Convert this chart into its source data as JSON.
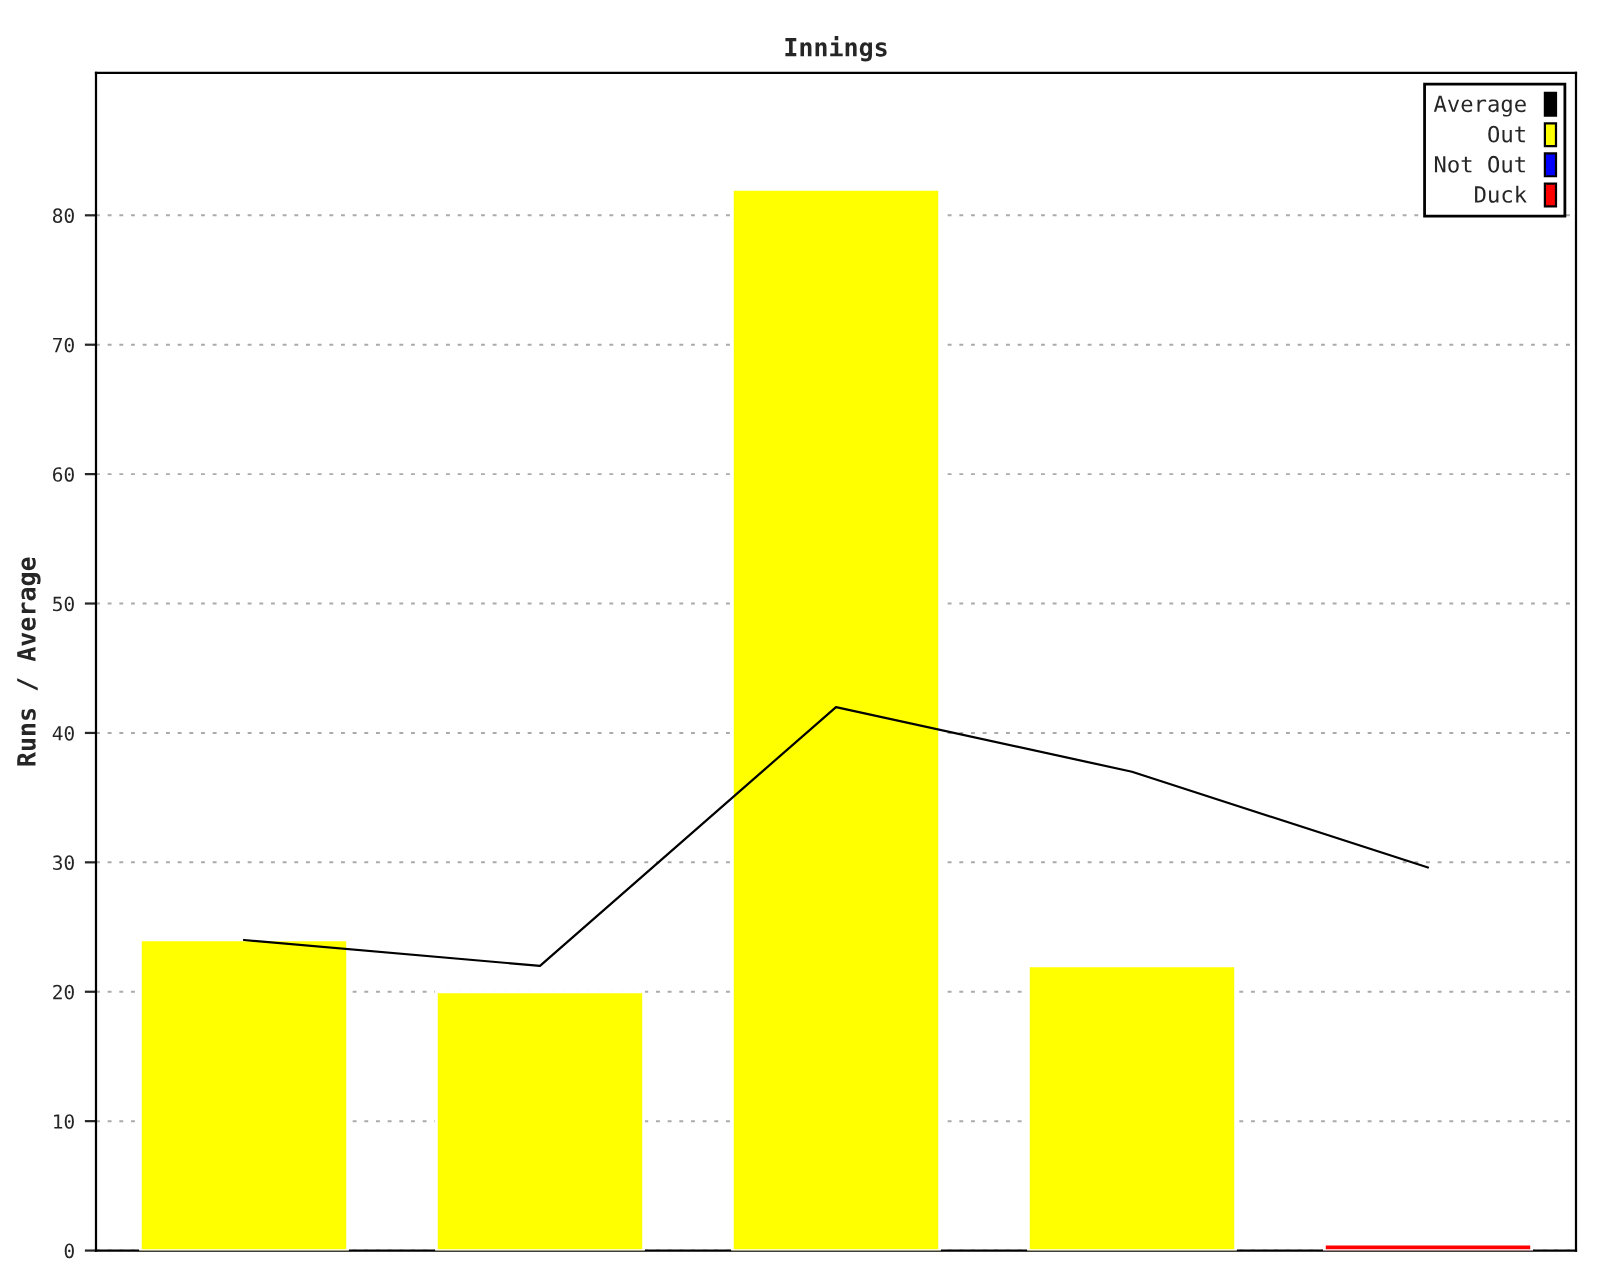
{
  "chart_data": {
    "type": "bar",
    "title": "Innings",
    "ylabel": "Runs / Average",
    "categories": [
      null,
      null,
      null,
      null,
      null
    ],
    "series": [
      {
        "name": "Average",
        "type": "line",
        "color": "#000000",
        "values": [
          24,
          22,
          42,
          37,
          29.6
        ]
      },
      {
        "name": "Out",
        "color": "#ffff00",
        "values": [
          24,
          20,
          82,
          22,
          null
        ]
      },
      {
        "name": "Not Out",
        "color": "#0000ff",
        "values": [
          null,
          null,
          null,
          null,
          null
        ]
      },
      {
        "name": "Duck",
        "color": "#ff0000",
        "values": [
          null,
          null,
          null,
          null,
          0.5
        ]
      }
    ],
    "ylim": [
      0,
      91
    ],
    "yticks": [
      0,
      10,
      20,
      30,
      40,
      50,
      60,
      70,
      80
    ],
    "grid": "y",
    "legend": "top right",
    "tick_labels": "y"
  }
}
